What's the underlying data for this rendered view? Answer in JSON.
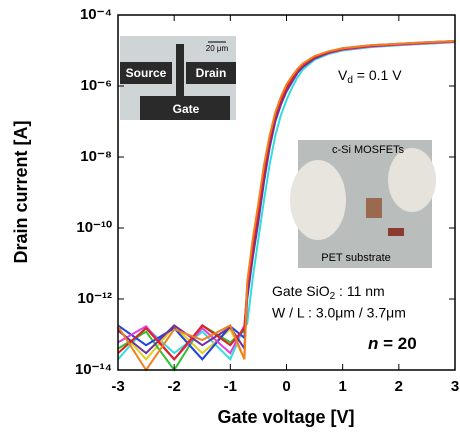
{
  "chart_data": {
    "type": "line",
    "ylabel": "Drain current [A]",
    "xlabel": "Gate voltage [V]",
    "log_y": true,
    "xlim": [
      -3,
      3
    ],
    "xticks": [
      -3,
      -2,
      -1,
      0,
      1,
      2,
      3
    ],
    "ylim": [
      1e-14,
      0.0001
    ],
    "yticks": [
      {
        "value": 1e-14,
        "label": "10⁻¹⁴"
      },
      {
        "value": 1e-12,
        "label": "10⁻¹²"
      },
      {
        "value": 1e-10,
        "label": "10⁻¹⁰"
      },
      {
        "value": 1e-08,
        "label": "10⁻⁸"
      },
      {
        "value": 1e-06,
        "label": "10⁻⁶"
      },
      {
        "value": 0.0001,
        "label": "10⁻⁴"
      }
    ],
    "x": [
      -3,
      -2.5,
      -2,
      -1.5,
      -1,
      -0.75,
      -0.7,
      -0.6,
      -0.5,
      -0.4,
      -0.3,
      -0.2,
      -0.1,
      0,
      0.1,
      0.2,
      0.3,
      0.5,
      0.75,
      1,
      1.5,
      2,
      2.5,
      3
    ],
    "series": [
      {
        "color": "#33dddd",
        "values": [
          2e-14,
          1.6e-13,
          3e-14,
          1.2e-13,
          2e-14,
          1.7e-13,
          2e-13,
          4e-12,
          5e-11,
          6e-10,
          6e-09,
          4e-08,
          1.5e-07,
          4e-07,
          9e-07,
          1.8e-06,
          3e-06,
          5.5e-06,
          8e-06,
          1e-05,
          1.25e-05,
          1.4e-05,
          1.55e-05,
          1.7e-05
        ]
      },
      {
        "color": "#e0d020",
        "values": [
          1.5e-13,
          2e-14,
          1.7e-13,
          3e-14,
          1.4e-13,
          2e-14,
          1.5e-12,
          2e-11,
          2.5e-10,
          3e-09,
          2.5e-08,
          1.3e-07,
          3.5e-07,
          8e-07,
          1.5e-06,
          2.6e-06,
          3.8e-06,
          6.3e-06,
          8.8e-06,
          1.1e-05,
          1.35e-05,
          1.5e-05,
          1.65e-05,
          1.8e-05
        ]
      },
      {
        "color": "#30c030",
        "values": [
          4e-14,
          1.2e-13,
          1e-14,
          1.8e-13,
          6e-14,
          1.3e-13,
          1.8e-12,
          3e-11,
          3e-10,
          4e-09,
          3e-08,
          1.5e-07,
          4e-07,
          9e-07,
          1.6e-06,
          2.8e-06,
          4e-06,
          6.5e-06,
          9e-06,
          1.1e-05,
          1.35e-05,
          1.5e-05,
          1.65e-05,
          1.8e-05
        ]
      },
      {
        "color": "#2040e0",
        "values": [
          1.8e-13,
          5e-14,
          1.5e-13,
          2e-14,
          1.7e-13,
          8e-14,
          2.5e-12,
          4e-11,
          4e-10,
          5e-09,
          3.5e-08,
          1.7e-07,
          4.5e-07,
          1e-06,
          1.7e-06,
          3e-06,
          4.2e-06,
          6.8e-06,
          9.3e-06,
          1.15e-05,
          1.4e-05,
          1.55e-05,
          1.7e-05,
          1.85e-05
        ]
      },
      {
        "color": "#e040e0",
        "values": [
          6e-14,
          1.7e-13,
          2e-14,
          1.5e-13,
          3e-14,
          1.8e-13,
          1.2e-12,
          2e-11,
          2e-10,
          2.5e-09,
          2e-08,
          1.1e-07,
          3.2e-07,
          7.5e-07,
          1.4e-06,
          2.5e-06,
          3.6e-06,
          6e-06,
          8.5e-06,
          1.05e-05,
          1.3e-05,
          1.45e-05,
          1.6e-05,
          1.75e-05
        ]
      },
      {
        "color": "#7030a0",
        "values": [
          1.3e-13,
          3e-14,
          1.8e-13,
          5e-14,
          1.6e-13,
          4e-14,
          1e-12,
          1.5e-11,
          1.5e-10,
          2e-09,
          1.8e-08,
          1e-07,
          3e-07,
          7e-07,
          1.3e-06,
          2.4e-06,
          3.5e-06,
          6e-06,
          8.6e-06,
          1.08e-05,
          1.33e-05,
          1.5e-05,
          1.65e-05,
          1.82e-05
        ]
      },
      {
        "color": "#e02020",
        "values": [
          3e-14,
          1.5e-13,
          2e-14,
          1.8e-13,
          5e-14,
          1.5e-13,
          2e-12,
          3e-11,
          3e-10,
          4e-09,
          3e-08,
          1.5e-07,
          4e-07,
          9e-07,
          1.6e-06,
          2.8e-06,
          4e-06,
          6.5e-06,
          9e-06,
          1.1e-05,
          1.35e-05,
          1.5e-05,
          1.65e-05,
          1.8e-05
        ]
      },
      {
        "color": "#f08020",
        "values": [
          1.7e-13,
          1e-14,
          1.4e-13,
          7e-14,
          1.8e-13,
          2e-14,
          3e-12,
          5e-11,
          5e-10,
          6e-09,
          4e-08,
          1.8e-07,
          5e-07,
          1.1e-06,
          1.9e-06,
          3.1e-06,
          4.4e-06,
          7e-06,
          9.5e-06,
          1.15e-05,
          1.4e-05,
          1.55e-05,
          1.7e-05,
          1.85e-05
        ]
      }
    ],
    "annotations": {
      "vd": {
        "main": "V",
        "sub": "d",
        "rest": " = 0.1 V"
      },
      "oxide": {
        "main": "Gate SiO",
        "sub": "2",
        "rest": " : 11 nm"
      },
      "wl": "W / L : 3.0μm / 3.7μm",
      "n": {
        "var": "n",
        "rest": " = 20"
      }
    },
    "inset_micrograph": {
      "scale": "20 μm",
      "source": "Source",
      "drain": "Drain",
      "gate": "Gate"
    },
    "inset_photo": {
      "device": "c-Si MOSFETs",
      "substrate": "PET substrate"
    }
  }
}
